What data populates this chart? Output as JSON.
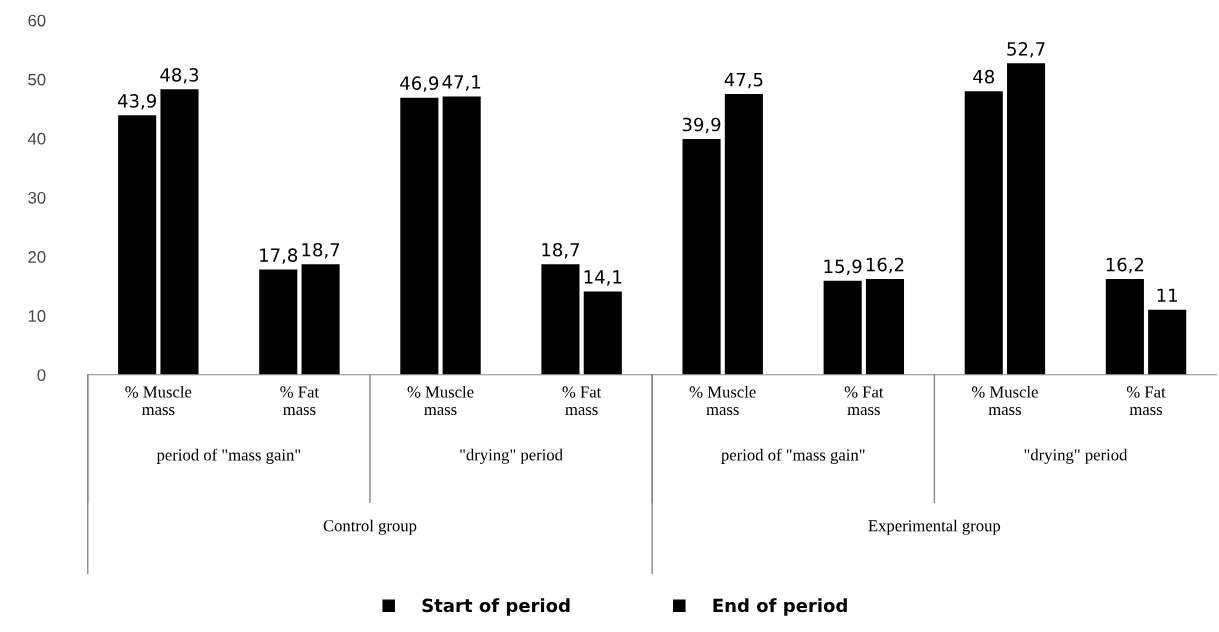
{
  "chart_data": {
    "type": "bar",
    "categories": [
      "% Muscle\nmass",
      "% Fat\nmass",
      "% Muscle\nmass",
      "% Fat\nmass",
      "% Muscle\nmass",
      "% Fat\nmass",
      "% Muscle\nmass",
      "% Fat\nmass"
    ],
    "series": [
      {
        "name": "Start of period",
        "color": "#000000",
        "values": [
          43.9,
          17.8,
          46.9,
          18.7,
          39.9,
          15.9,
          48,
          16.2
        ],
        "value_labels": [
          "43,9",
          "17,8",
          "46,9",
          "18,7",
          "39,9",
          "15,9",
          "48",
          "16,2"
        ]
      },
      {
        "name": "End of period",
        "color": "#000000",
        "values": [
          48.3,
          18.7,
          47.1,
          14.1,
          47.5,
          16.2,
          52.7,
          11
        ],
        "value_labels": [
          "48,3",
          "18,7",
          "47,1",
          "14,1",
          "47,5",
          "16,2",
          "52,7",
          "11"
        ]
      }
    ],
    "annotations": [
      "period of \"mass gain\"",
      "\"drying\" period",
      "period of \"mass gain\"",
      "\"drying\" period",
      "Control group",
      "Experimental group"
    ],
    "ylim": [
      0,
      60
    ],
    "yticks": [
      0,
      10,
      20,
      30,
      40,
      50,
      60
    ],
    "grid": false,
    "legend": "bottom"
  }
}
